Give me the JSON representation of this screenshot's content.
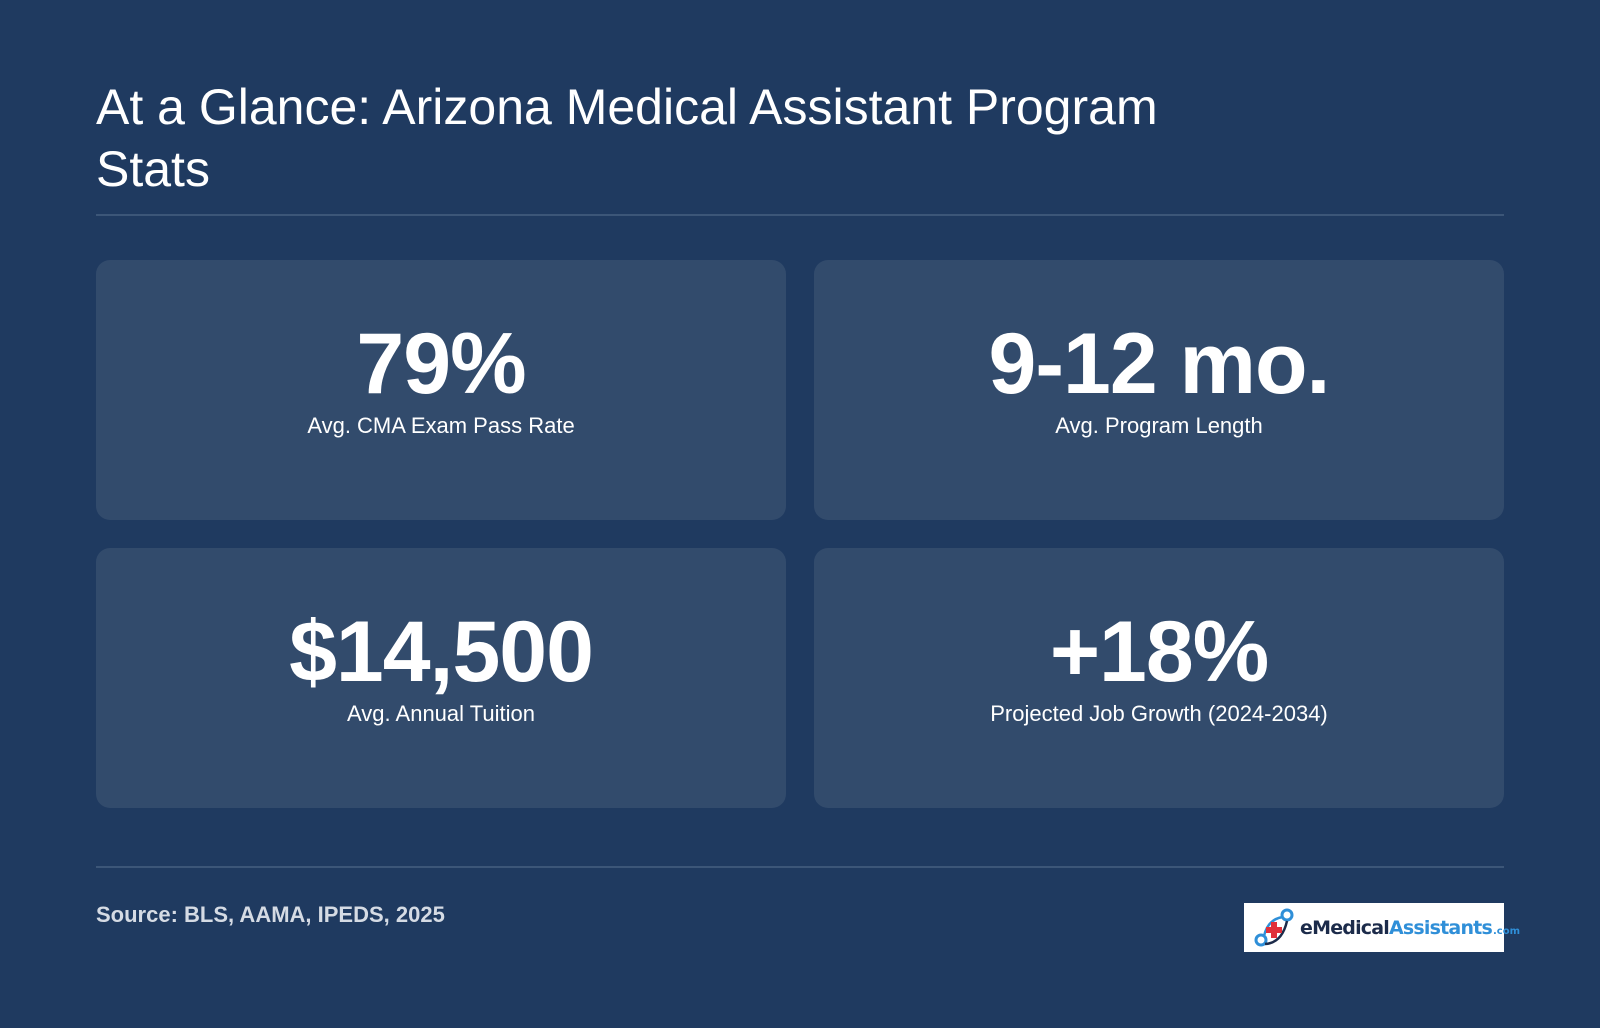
{
  "title": "At a Glance: Arizona Medical Assistant Program Stats",
  "stats": [
    {
      "value": "79%",
      "label": "Avg. CMA Exam Pass Rate"
    },
    {
      "value": "9-12 mo.",
      "label": "Avg. Program Length"
    },
    {
      "value": "$14,500",
      "label": "Avg. Annual Tuition"
    },
    {
      "value": "+18%",
      "label": "Projected Job Growth (2024-2034)"
    }
  ],
  "source": "Source: BLS, AAMA, IPEDS, 2025",
  "logo": {
    "text_e": "e",
    "text_medical": "Medical",
    "text_assistants": "Assistants",
    "text_com": ".com",
    "icon": "medical-cross-network-icon"
  },
  "colors": {
    "background": "#1f3a60",
    "card": "#324b6c",
    "divider": "#3c5678",
    "text": "#ffffff",
    "source_text": "#d5dbe4",
    "logo_accent": "#2f8fd8",
    "logo_cross": "#e0303a"
  }
}
